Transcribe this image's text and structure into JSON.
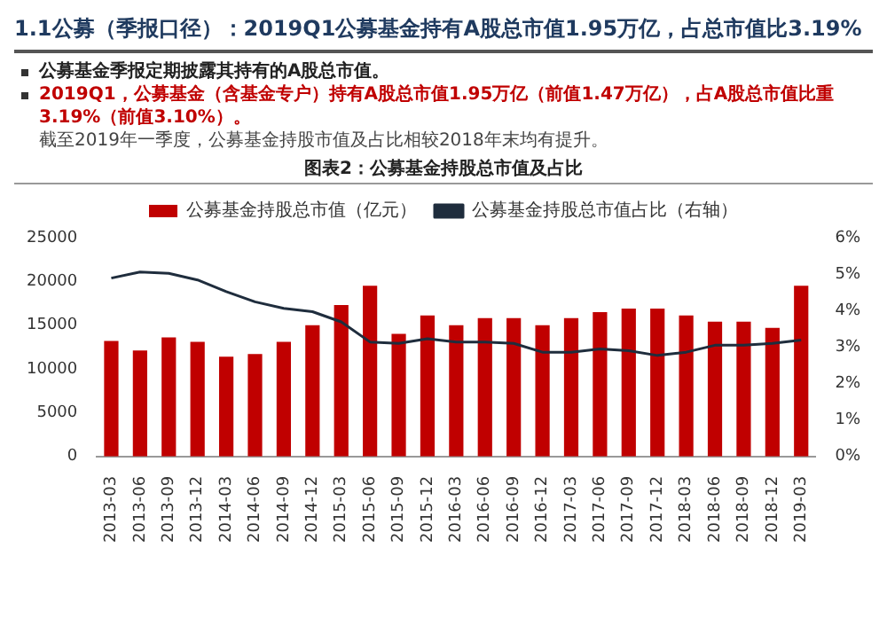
{
  "chart_data": {
    "type": "bar",
    "title": "1.1公募（季报口径）：2019Q1公募基金持有A股总市值1.95万亿，占总市值比3.19%",
    "subtitle": "图表2：公募基金持股总市值及占比",
    "annotations": [
      "公募基金季报定期披露其持有的A股总市值。",
      "2019Q1，公募基金（含基金专户）持有A股总市值1.95万亿（前值1.47万亿），占A股总市值比重3.19%（前值3.10%）。",
      "截至2019年一季度，公募基金持股市值及占比相较2018年末均有提升。"
    ],
    "categories": [
      "2013-03",
      "2013-06",
      "2013-09",
      "2013-12",
      "2014-03",
      "2014-06",
      "2014-09",
      "2014-12",
      "2015-03",
      "2015-06",
      "2015-09",
      "2015-12",
      "2016-03",
      "2016-06",
      "2016-09",
      "2016-12",
      "2017-03",
      "2017-06",
      "2017-09",
      "2017-12",
      "2018-03",
      "2018-06",
      "2018-09",
      "2018-12",
      "2019-03"
    ],
    "series": [
      {
        "name": "公募基金持股总市值（亿元）",
        "color": "#c00000",
        "values": [
          13200,
          12100,
          13600,
          13100,
          11400,
          11700,
          13100,
          15000,
          17300,
          19500,
          14000,
          16100,
          15000,
          15800,
          15800,
          15000,
          15800,
          16500,
          16900,
          16900,
          16100,
          15400,
          15400,
          14700,
          19500
        ]
      },
      {
        "name": "公募基金持股总市值占比（右轴）",
        "type": "line",
        "axis": "y2",
        "color": "#1f2d3d",
        "values": [
          4.89,
          5.06,
          5.02,
          4.84,
          4.52,
          4.24,
          4.06,
          3.97,
          3.69,
          3.14,
          3.1,
          3.23,
          3.14,
          3.14,
          3.1,
          2.86,
          2.86,
          2.95,
          2.9,
          2.77,
          2.86,
          3.05,
          3.05,
          3.1,
          3.19
        ]
      }
    ],
    "ylim": [
      0,
      25000
    ],
    "yticks": [
      0,
      5000,
      10000,
      15000,
      20000,
      25000
    ],
    "y2lim": [
      0,
      6
    ],
    "y2ticks": [
      {
        "value": 0,
        "label": "0%"
      },
      {
        "value": 1,
        "label": "1%"
      },
      {
        "value": 2,
        "label": "2%"
      },
      {
        "value": 3,
        "label": "3%"
      },
      {
        "value": 4,
        "label": "4%"
      },
      {
        "value": 5,
        "label": "5%"
      },
      {
        "value": 6,
        "label": "6%"
      }
    ],
    "grid": false,
    "legend": "top",
    "marker": "none",
    "line_style": "solid"
  }
}
